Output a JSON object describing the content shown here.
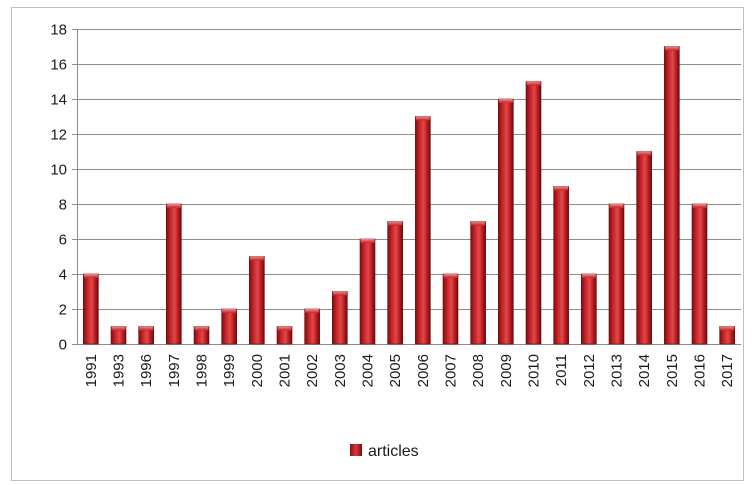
{
  "chart_data": {
    "type": "bar",
    "title": "",
    "xlabel": "",
    "ylabel": "",
    "categories": [
      "1991",
      "1993",
      "1996",
      "1997",
      "1998",
      "1999",
      "2000",
      "2001",
      "2002",
      "2003",
      "2004",
      "2005",
      "2006",
      "2007",
      "2008",
      "2009",
      "2010",
      "2011",
      "2012",
      "2013",
      "2014",
      "2015",
      "2016",
      "2017"
    ],
    "series": [
      {
        "name": "articles",
        "color": "#b81c1f",
        "values": [
          4,
          1,
          1,
          8,
          1,
          2,
          5,
          1,
          2,
          3,
          6,
          7,
          13,
          4,
          7,
          14,
          15,
          9,
          4,
          8,
          11,
          17,
          8,
          1
        ]
      }
    ],
    "ylim": [
      0,
      18
    ],
    "yticks": [
      0,
      2,
      4,
      6,
      8,
      10,
      12,
      14,
      16,
      18
    ],
    "grid": true,
    "legend": "bottom",
    "bar_style": "3d-cylinder-gradient"
  }
}
